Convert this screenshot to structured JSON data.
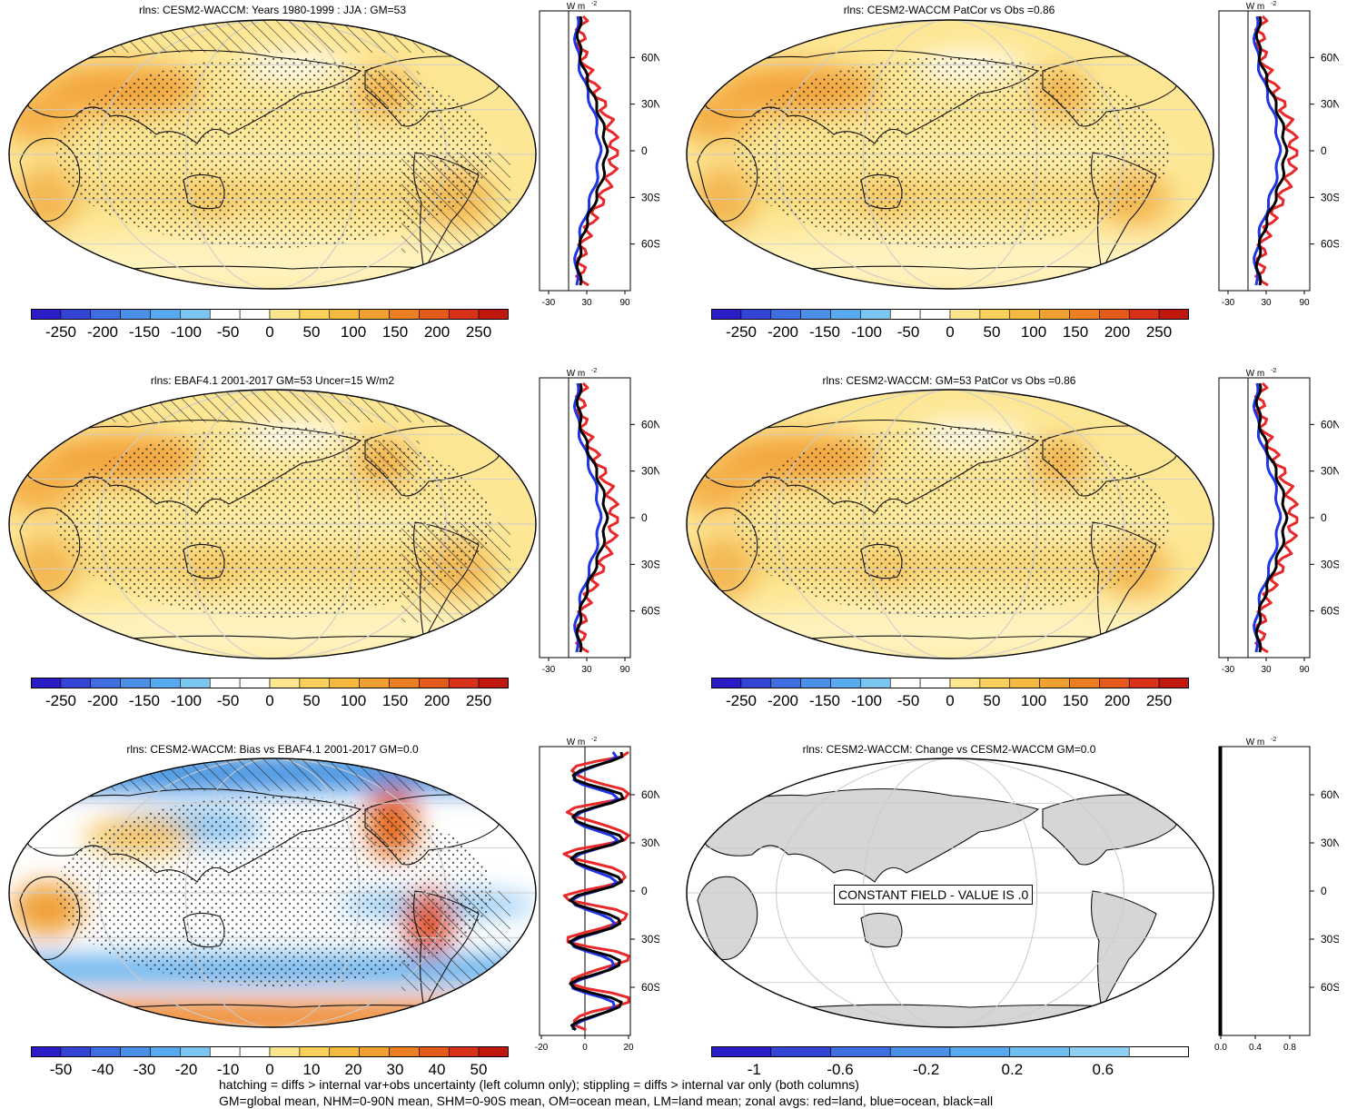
{
  "panels": [
    {
      "id": "p1",
      "title": "rlns: CESM2-WACCM: Years 1980-1999 : JJA : GM=53",
      "style": "mean",
      "hatch": true
    },
    {
      "id": "p2",
      "title": "rlns: CESM2-WACCM PatCor vs Obs =0.86",
      "style": "mean",
      "hatch": false
    },
    {
      "id": "p3",
      "title": "rlns: EBAF4.1 2001-2017 GM=53 Uncer=15 W/m2",
      "style": "mean",
      "hatch": true
    },
    {
      "id": "p4",
      "title": "rlns: CESM2-WACCM: GM=53 PatCor vs Obs =0.86",
      "style": "mean",
      "hatch": false
    },
    {
      "id": "p5",
      "title": "rlns: CESM2-WACCM: Bias vs EBAF4.1 2001-2017 GM=0.0",
      "style": "bias",
      "hatch": true
    },
    {
      "id": "p6",
      "title": "rlns: CESM2-WACCM: Change vs CESM2-WACCM GM=0.0",
      "style": "const",
      "hatch": false,
      "constant_label": "CONSTANT FIELD - VALUE IS .0"
    }
  ],
  "colorbars": [
    {
      "labels": [
        "-250",
        "-200",
        "-150",
        "-100",
        "-50",
        "0",
        "50",
        "100",
        "150",
        "200",
        "250"
      ]
    },
    {
      "labels": [
        "-250",
        "-200",
        "-150",
        "-100",
        "-50",
        "0",
        "50",
        "100",
        "150",
        "200",
        "250"
      ]
    },
    {
      "labels": [
        "-250",
        "-200",
        "-150",
        "-100",
        "-50",
        "0",
        "50",
        "100",
        "150",
        "200",
        "250"
      ]
    },
    {
      "labels": [
        "-250",
        "-200",
        "-150",
        "-100",
        "-50",
        "0",
        "50",
        "100",
        "150",
        "200",
        "250"
      ]
    },
    {
      "labels": [
        "-50",
        "-40",
        "-30",
        "-20",
        "-10",
        "0",
        "10",
        "20",
        "30",
        "40",
        "50"
      ]
    },
    {
      "labels": [
        "-1",
        "-0.6",
        "-0.2",
        "0.2",
        "0.6"
      ]
    }
  ],
  "zonal": {
    "unit": "W m",
    "unit_exp": "-2",
    "lat_labels": [
      "60N",
      "30N",
      "0",
      "30S",
      "60S"
    ],
    "x_ticks": [
      [
        "-30",
        "30",
        "90"
      ],
      [
        "-30",
        "30",
        "90"
      ],
      [
        "-30",
        "30",
        "90"
      ],
      [
        "-30",
        "30",
        "90"
      ],
      [
        "-20",
        "0",
        "20"
      ],
      [
        "0.0",
        "0.4",
        "0.8"
      ]
    ]
  },
  "colors": {
    "land": "#e8282a",
    "ocean": "#2035e6",
    "all": "#000000"
  },
  "footer": {
    "line1": "hatching = diffs > internal var+obs uncertainty (left column only); stippling = diffs > internal var only (both columns)",
    "line2": "GM=global mean, NHM=0-90N mean, SHM=0-90S mean, OM=ocean mean, LM=land mean; zonal avgs: red=land, blue=ocean, black=all"
  }
}
